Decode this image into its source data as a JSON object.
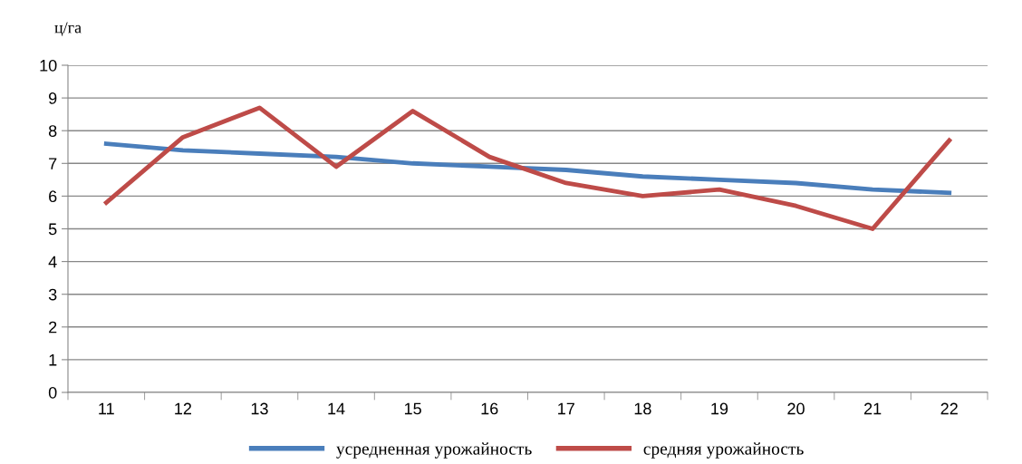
{
  "chart_data": {
    "type": "line",
    "ylabel": "ц/га",
    "categories": [
      "11",
      "12",
      "13",
      "14",
      "15",
      "16",
      "17",
      "18",
      "19",
      "20",
      "21",
      "22"
    ],
    "series": [
      {
        "name": "усредненная урожайность",
        "color": "#4a7ebb",
        "values": [
          7.6,
          7.4,
          7.3,
          7.2,
          7.0,
          6.9,
          6.8,
          6.6,
          6.5,
          6.4,
          6.2,
          6.1
        ]
      },
      {
        "name": "средняя урожайность",
        "color": "#be4b48",
        "values": [
          5.8,
          7.8,
          8.7,
          6.9,
          8.6,
          7.2,
          6.4,
          6.0,
          6.2,
          5.7,
          5.0,
          7.7
        ]
      }
    ],
    "ylim": [
      0,
      10
    ],
    "yticks": [
      0,
      1,
      2,
      3,
      4,
      5,
      6,
      7,
      8,
      9,
      10
    ],
    "grid": "y",
    "legend": "bottom",
    "marker": "none",
    "line_style": "solid"
  }
}
